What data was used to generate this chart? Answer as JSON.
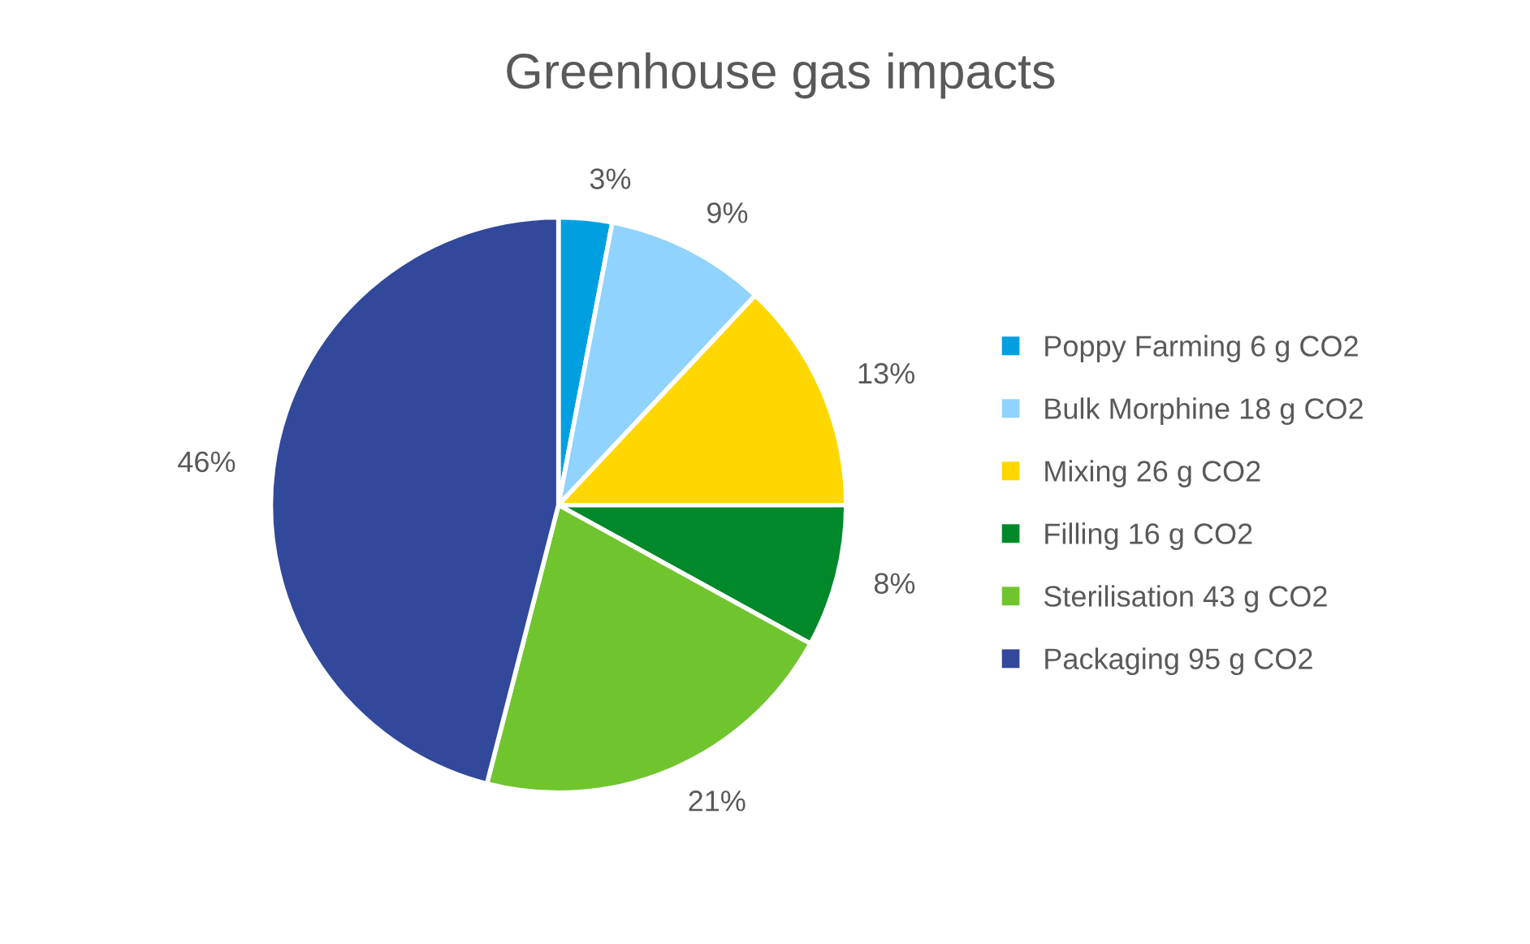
{
  "chart_data": {
    "type": "pie",
    "title": "Greenhouse gas impacts",
    "categories": [
      "Poppy Farming 6 g CO2",
      "Bulk Morphine 18 g CO2",
      "Mixing 26 g CO2",
      "Filling 16 g CO2",
      "Sterilisation 43 g CO2",
      "Packaging 95 g CO2"
    ],
    "values": [
      3,
      9,
      13,
      8,
      21,
      46
    ],
    "value_labels": [
      "3%",
      "9%",
      "13%",
      "8%",
      "21%",
      "46%"
    ],
    "colors": [
      "#00a0e0",
      "#8fd3fe",
      "#ffd700",
      "#00882b",
      "#70c52f",
      "#32489a"
    ],
    "legend": "right"
  }
}
